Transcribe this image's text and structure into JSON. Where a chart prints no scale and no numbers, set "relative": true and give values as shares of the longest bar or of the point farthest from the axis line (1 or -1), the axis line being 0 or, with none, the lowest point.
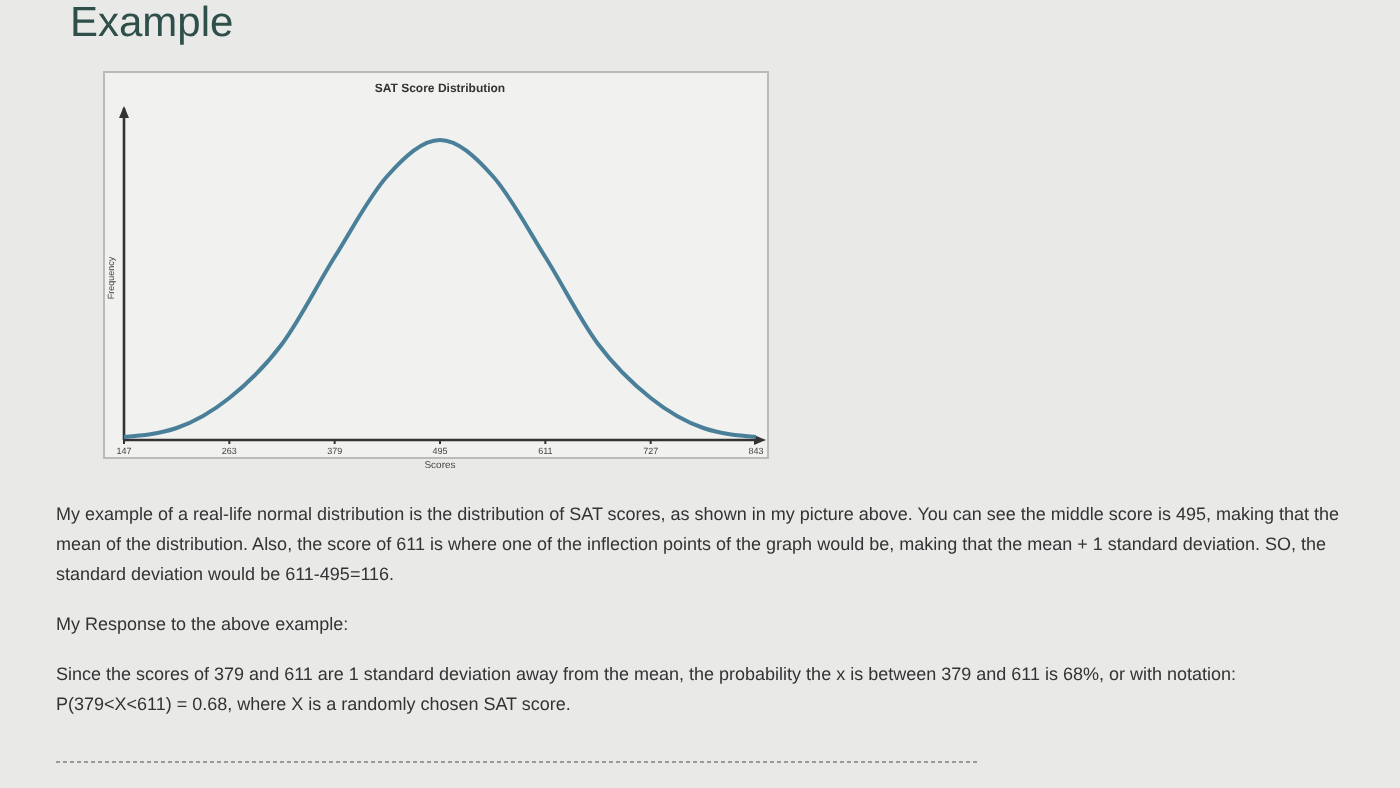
{
  "chart_data": {
    "type": "line",
    "title": "SAT Score Distribution",
    "xlabel": "Scores",
    "ylabel": "Frequency",
    "relative": true,
    "x": [
      147,
      205,
      263,
      321,
      379,
      437,
      495,
      553,
      611,
      669,
      727,
      785,
      843
    ],
    "series": [
      {
        "color": "#4a7f9a",
        "values": [
          0.01,
          0.04,
          0.14,
          0.32,
          0.61,
          0.88,
          1,
          0.88,
          0.61,
          0.32,
          0.14,
          0.04,
          0.01
        ]
      }
    ],
    "xlim": [
      147,
      843
    ],
    "xticks": [
      147,
      263,
      379,
      495,
      611,
      727,
      843
    ],
    "marker": "none",
    "line_style": "solid",
    "annotations": [
      "Example",
      "My example of a real-life normal distribution is the distribution of SAT scores, as shown in my picture above. You can see the middle score is 495, making that the mean of the distribution. Also, the score of 611 is where one of the inflection points of the graph would be, making that the mean + 1 standard deviation. SO, the standard deviation would be 611-495=116.",
      "My Response to the above example:",
      "Since the scores of 379 and 611 are 1 standard deviation away from the mean, the probability the x is between 379 and 611 is 68%, or with notation: P(379<X<611) = 0.68, where X is a randomly chosen SAT score."
    ]
  }
}
